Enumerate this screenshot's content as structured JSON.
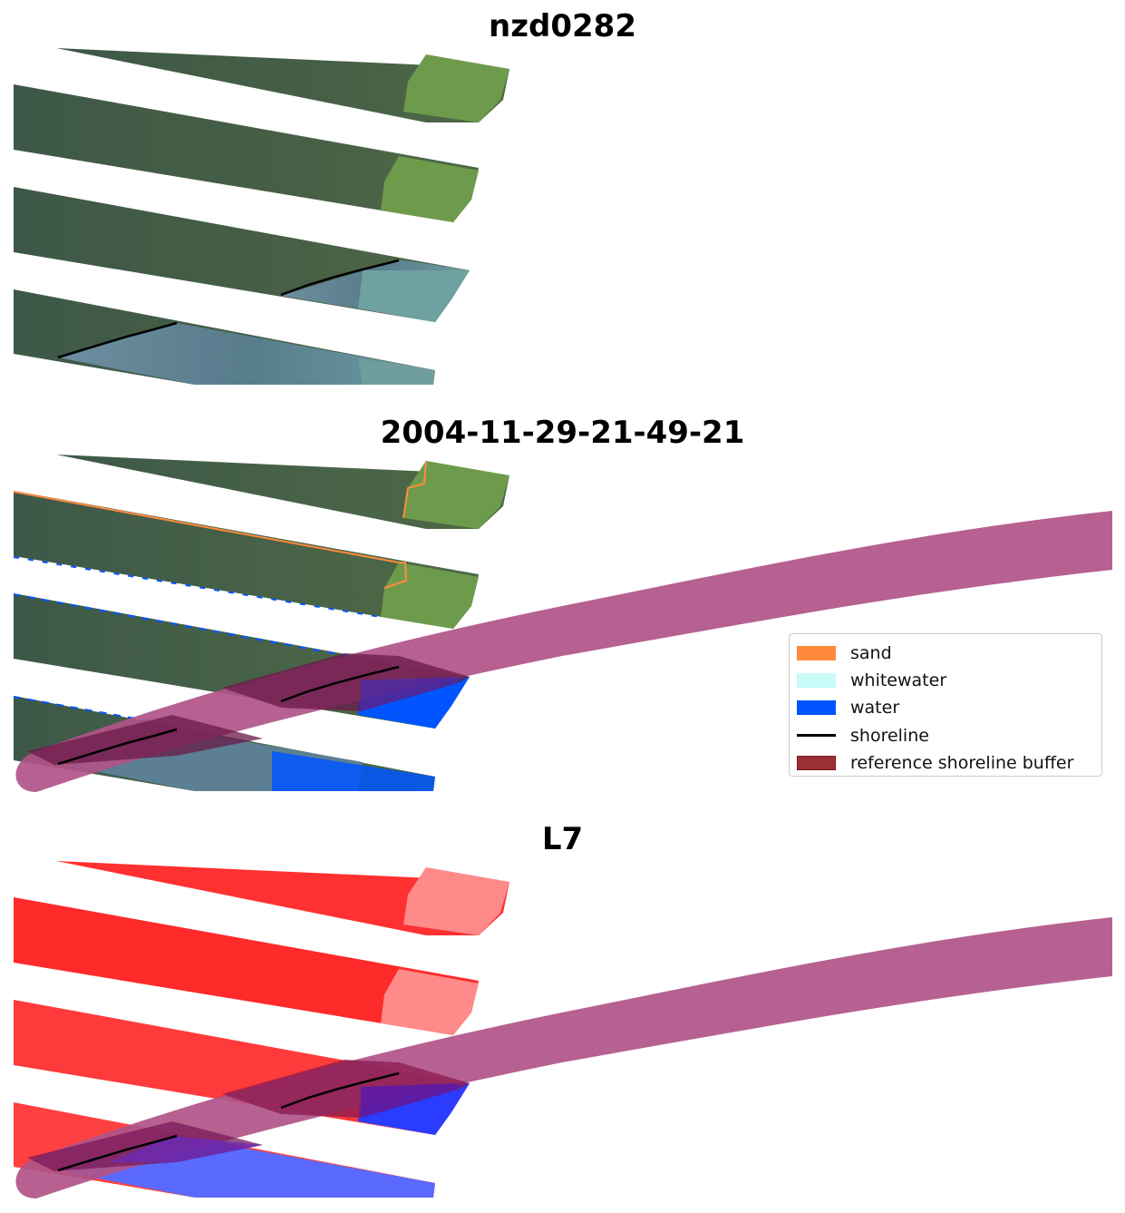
{
  "panels": [
    {
      "title": "nzd0282"
    },
    {
      "title": "2004-11-29-21-49-21"
    },
    {
      "title": "L7"
    }
  ],
  "legend": {
    "items": [
      {
        "label": "sand",
        "kind": "patch",
        "color": "#ff8a3d"
      },
      {
        "label": "whitewater",
        "kind": "patch",
        "color": "#c8fcf8"
      },
      {
        "label": "water",
        "kind": "patch",
        "color": "#0055ff"
      },
      {
        "label": "shoreline",
        "kind": "line",
        "color": "#000000"
      },
      {
        "label": "reference shoreline buffer",
        "kind": "patch",
        "color": "#9a2f34",
        "edge": "#7a1a1f"
      }
    ]
  },
  "colors": {
    "land_dark": "#3e5a46",
    "land_light": "#6f9a4a",
    "sea": "#5c7f93",
    "sea_light": "#6f9ca0",
    "buffer": "#b05488",
    "buffer_overlap": "#6a1a48",
    "red_band": "#ff3030",
    "red_light": "#ff8a8a",
    "blue_band": "#2a3cff"
  }
}
